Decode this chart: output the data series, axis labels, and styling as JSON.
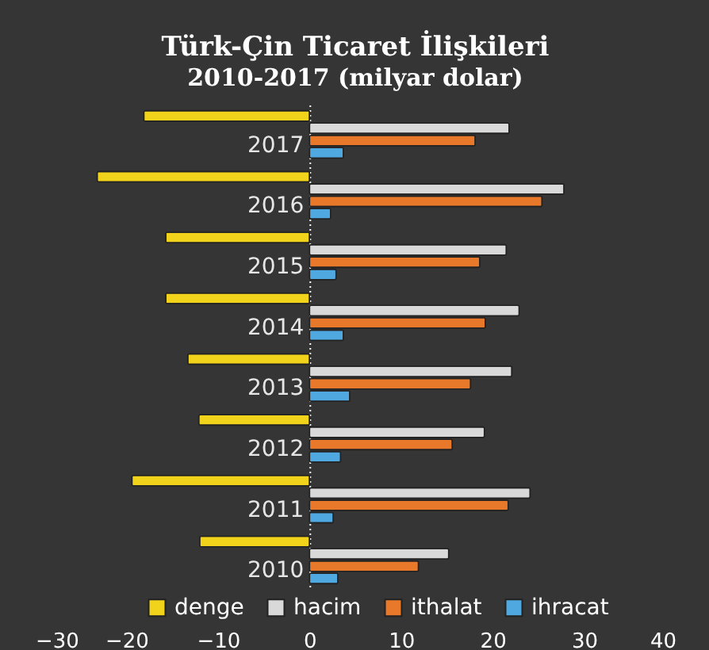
{
  "chart_data": {
    "type": "bar",
    "orientation": "horizontal",
    "title": "Türk-Çin Ticaret İlişkileri",
    "subtitle": "2010-2017 (milyar dolar)",
    "categories": [
      "2017",
      "2016",
      "2015",
      "2014",
      "2013",
      "2012",
      "2011",
      "2010"
    ],
    "series": [
      {
        "name": "denge",
        "color": "#f2d31b",
        "values": [
          -18.1,
          -23.2,
          -15.7,
          -15.7,
          -13.3,
          -12.1,
          -19.4,
          -12.0
        ]
      },
      {
        "name": "hacim",
        "color": "#d9d9d9",
        "values": [
          21.8,
          27.8,
          21.5,
          22.9,
          22.1,
          19.1,
          24.1,
          15.2
        ]
      },
      {
        "name": "ithalat",
        "color": "#e8792b",
        "values": [
          18.1,
          25.4,
          18.6,
          19.2,
          17.6,
          15.6,
          21.7,
          11.9
        ]
      },
      {
        "name": "ihracat",
        "color": "#4fa8e0",
        "values": [
          3.7,
          2.3,
          2.9,
          3.7,
          4.4,
          3.4,
          2.6,
          3.1
        ]
      }
    ],
    "xlim": [
      -30,
      40
    ],
    "xticks": [
      -30,
      -20,
      -10,
      0,
      10,
      20,
      30,
      40
    ],
    "legend": "bottom"
  }
}
